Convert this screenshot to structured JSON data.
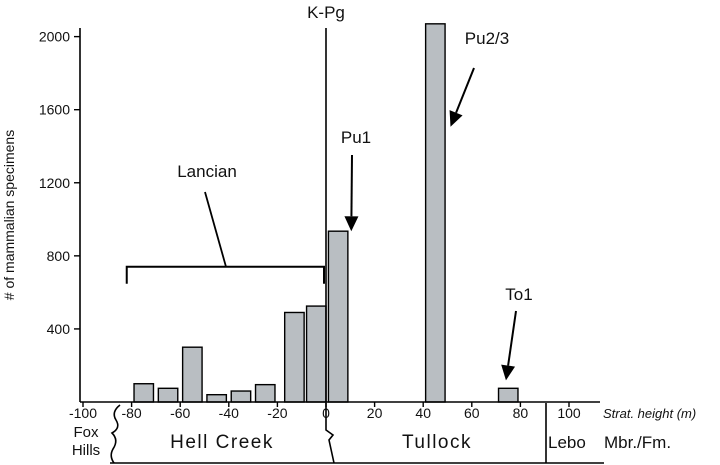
{
  "chart_data": {
    "type": "bar",
    "ylabel": "# of mammalian specimens",
    "xlabel": "Strat. height (m)",
    "ylim": [
      0,
      2080
    ],
    "xlim": [
      -105,
      107
    ],
    "y_ticks": [
      400,
      800,
      1200,
      1600,
      2000
    ],
    "x_ticks": [
      -100,
      -80,
      -60,
      -40,
      -20,
      0,
      20,
      40,
      60,
      80,
      100
    ],
    "x_tick_labels": [
      "-100",
      "-80",
      "-60",
      "-40",
      "-20",
      "0",
      "20",
      "40",
      "60",
      "80",
      "100"
    ],
    "bar_width": 8,
    "bars": [
      {
        "x": -75,
        "value": 100
      },
      {
        "x": -65,
        "value": 75
      },
      {
        "x": -55,
        "value": 300
      },
      {
        "x": -45,
        "value": 40
      },
      {
        "x": -35,
        "value": 60
      },
      {
        "x": -25,
        "value": 95
      },
      {
        "x": -13,
        "value": 490
      },
      {
        "x": -4,
        "value": 525
      },
      {
        "x": 5,
        "value": 935
      },
      {
        "x": 45,
        "value": 2070
      },
      {
        "x": 75,
        "value": 75
      }
    ],
    "boundary": {
      "label": "K-Pg",
      "x": 0
    },
    "annotations": [
      {
        "label": "Lancian",
        "bracket": [
          -82,
          0
        ],
        "bracket_y": 740
      },
      {
        "label": "Pu1",
        "target_x": 3,
        "target_value": 1000
      },
      {
        "label": "Pu2/3",
        "target_x": 50,
        "target_value": 1600
      },
      {
        "label": "To1",
        "target_x": 72,
        "target_value": 140
      }
    ],
    "formations": {
      "fox_hills": "Fox\nHills",
      "fox_hills_line1": "Fox",
      "fox_hills_line2": "Hills",
      "hell_creek": "Hell Creek",
      "tullock": "Tullock",
      "lebo": "Lebo",
      "unit_label": "Mbr./Fm."
    },
    "grid": false
  }
}
